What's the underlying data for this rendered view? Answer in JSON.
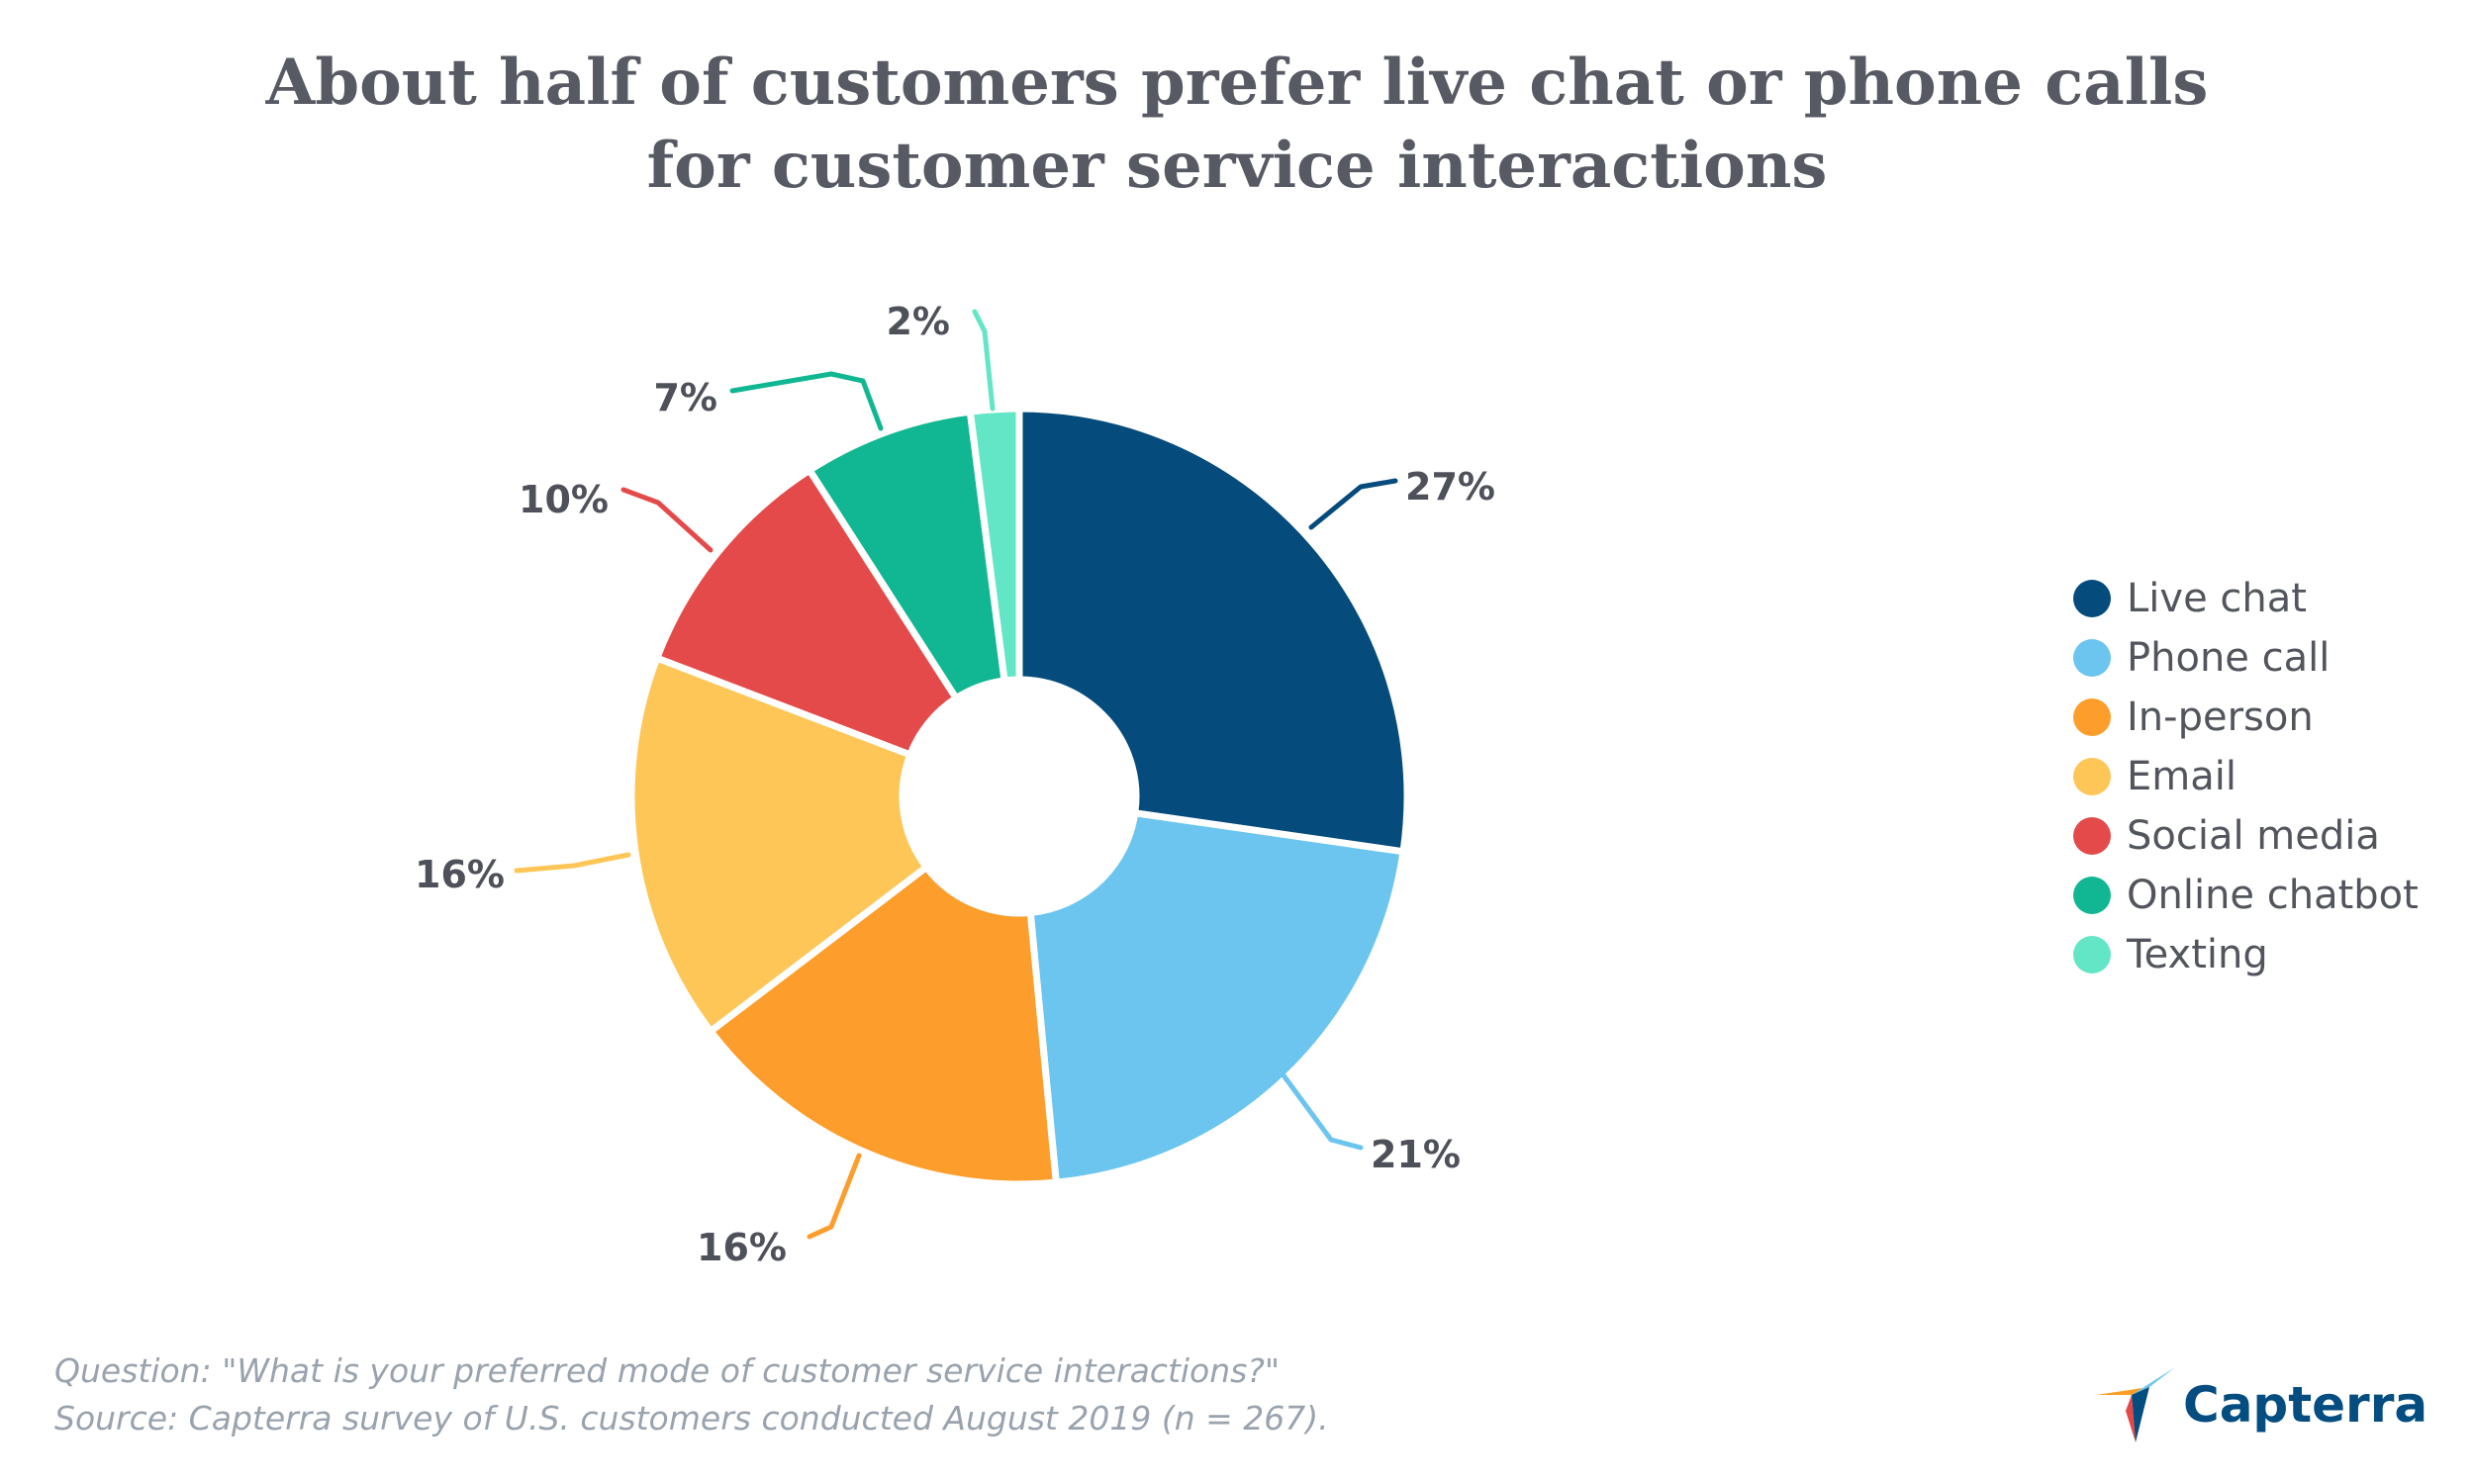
{
  "title_lines": [
    "About half of customers prefer live chat or phone calls",
    "for customer service interactions"
  ],
  "chart_data": {
    "type": "pie",
    "style": "donut",
    "title": "About half of customers prefer live chat or phone calls for customer service interactions",
    "categories": [
      "Live chat",
      "Phone call",
      "In-person",
      "Email",
      "Social media",
      "Online chatbot",
      "Texting"
    ],
    "values": [
      27,
      21,
      16,
      16,
      10,
      7,
      2
    ],
    "labels": [
      "27%",
      "21%",
      "16%",
      "16%",
      "10%",
      "7%",
      "2%"
    ],
    "colors": [
      "#054b7c",
      "#6bc5ee",
      "#fd9d2b",
      "#fec656",
      "#e44a4a",
      "#10b792",
      "#62e6c5"
    ],
    "legend_position": "right"
  },
  "footnote": {
    "question": "Question: \"What is your preferred mode of customer service interactions?\"",
    "source": "Source: Capterra survey of U.S. customers conducted August 2019 (n = 267)."
  },
  "logo": {
    "text": "Capterra",
    "colors": [
      "#ff9d28",
      "#68c5ed",
      "#044d80",
      "#e54747"
    ]
  }
}
